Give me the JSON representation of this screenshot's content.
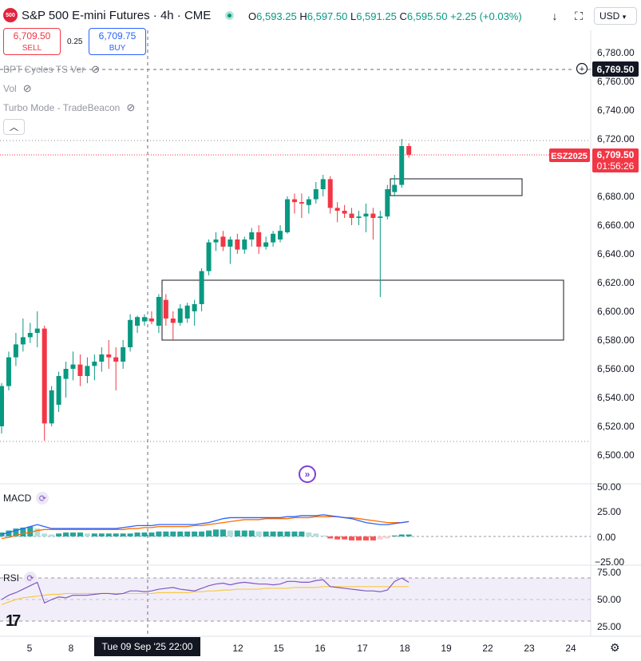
{
  "header": {
    "logo_text": "500",
    "title": "S&P 500 E-mini Futures · 4h · CME",
    "ohlc": {
      "open_label": "O",
      "open": "6,593.25",
      "high_label": "H",
      "high": "6,597.50",
      "low_label": "L",
      "low": "6,591.25",
      "close_label": "C",
      "close": "6,595.50",
      "change": "+2.25 (+0.03%)"
    },
    "currency": "USD"
  },
  "trade": {
    "sell_price": "6,709.50",
    "sell_label": "SELL",
    "spread": "0.25",
    "buy_price": "6,709.75",
    "buy_label": "BUY"
  },
  "indicators": [
    {
      "label": "BPT Cycles TS Ver"
    },
    {
      "label": "Vol"
    },
    {
      "label": "Turbo Mode - TradeBeacon"
    }
  ],
  "price_axis": {
    "ticks": [
      "6,780.00",
      "6,760.00",
      "6,740.00",
      "6,720.00",
      "6,680.00",
      "6,660.00",
      "6,640.00",
      "6,620.00",
      "6,600.00",
      "6,580.00",
      "6,560.00",
      "6,540.00",
      "6,520.00",
      "6,500.00"
    ],
    "crosshair_price": "6,769.50",
    "symbol_tag": "ESZ2025",
    "last_price": "6,709.50",
    "countdown": "01:56:26"
  },
  "macd": {
    "label": "MACD",
    "ticks": [
      "50.00",
      "25.00",
      "0.00",
      "−25.00"
    ]
  },
  "rsi": {
    "label": "RSI",
    "ticks": [
      "75.00",
      "50.00",
      "25.00"
    ]
  },
  "time_axis": {
    "ticks": [
      "5",
      "8",
      "12",
      "15",
      "16",
      "17",
      "18",
      "19",
      "22",
      "23",
      "24"
    ],
    "crosshair_time": "Tue 09 Sep '25   22:00"
  },
  "colors": {
    "up": "#089981",
    "down": "#f23645",
    "macd_line": "#2962ff",
    "signal_line": "#ff6d00",
    "rsi_line": "#7e57c2",
    "rsi_ma": "#f7c948"
  },
  "chart_data": {
    "type": "candlestick",
    "interval": "4h",
    "ylim": [
      6490,
      6790
    ],
    "candles": [
      {
        "o": 6520,
        "h": 6550,
        "l": 6515,
        "c": 6548
      },
      {
        "o": 6548,
        "h": 6572,
        "l": 6545,
        "c": 6568
      },
      {
        "o": 6568,
        "h": 6585,
        "l": 6562,
        "c": 6577
      },
      {
        "o": 6577,
        "h": 6595,
        "l": 6572,
        "c": 6582
      },
      {
        "o": 6582,
        "h": 6592,
        "l": 6578,
        "c": 6585
      },
      {
        "o": 6585,
        "h": 6600,
        "l": 6575,
        "c": 6588
      },
      {
        "o": 6588,
        "h": 6590,
        "l": 6510,
        "c": 6522
      },
      {
        "o": 6522,
        "h": 6548,
        "l": 6520,
        "c": 6545
      },
      {
        "o": 6535,
        "h": 6558,
        "l": 6530,
        "c": 6555
      },
      {
        "o": 6553,
        "h": 6565,
        "l": 6540,
        "c": 6560
      },
      {
        "o": 6560,
        "h": 6572,
        "l": 6552,
        "c": 6563
      },
      {
        "o": 6563,
        "h": 6570,
        "l": 6548,
        "c": 6555
      },
      {
        "o": 6555,
        "h": 6568,
        "l": 6550,
        "c": 6562
      },
      {
        "o": 6562,
        "h": 6570,
        "l": 6552,
        "c": 6565
      },
      {
        "o": 6565,
        "h": 6575,
        "l": 6558,
        "c": 6570
      },
      {
        "o": 6570,
        "h": 6580,
        "l": 6560,
        "c": 6568
      },
      {
        "o": 6568,
        "h": 6575,
        "l": 6545,
        "c": 6565
      },
      {
        "o": 6565,
        "h": 6580,
        "l": 6560,
        "c": 6575
      },
      {
        "o": 6575,
        "h": 6598,
        "l": 6572,
        "c": 6594
      },
      {
        "o": 6590,
        "h": 6597,
        "l": 6585,
        "c": 6596
      },
      {
        "o": 6593,
        "h": 6598,
        "l": 6590,
        "c": 6596
      },
      {
        "o": 6595,
        "h": 6600,
        "l": 6591,
        "c": 6593
      },
      {
        "o": 6590,
        "h": 6612,
        "l": 6585,
        "c": 6610
      },
      {
        "o": 6608,
        "h": 6612,
        "l": 6590,
        "c": 6595
      },
      {
        "o": 6595,
        "h": 6600,
        "l": 6580,
        "c": 6592
      },
      {
        "o": 6592,
        "h": 6605,
        "l": 6590,
        "c": 6602
      },
      {
        "o": 6595,
        "h": 6606,
        "l": 6592,
        "c": 6604
      },
      {
        "o": 6600,
        "h": 6608,
        "l": 6590,
        "c": 6605
      },
      {
        "o": 6605,
        "h": 6630,
        "l": 6600,
        "c": 6628
      },
      {
        "o": 6628,
        "h": 6650,
        "l": 6625,
        "c": 6648
      },
      {
        "o": 6648,
        "h": 6655,
        "l": 6642,
        "c": 6650
      },
      {
        "o": 6652,
        "h": 6656,
        "l": 6642,
        "c": 6645
      },
      {
        "o": 6645,
        "h": 6652,
        "l": 6633,
        "c": 6650
      },
      {
        "o": 6650,
        "h": 6654,
        "l": 6640,
        "c": 6643
      },
      {
        "o": 6643,
        "h": 6652,
        "l": 6640,
        "c": 6650
      },
      {
        "o": 6650,
        "h": 6658,
        "l": 6645,
        "c": 6655
      },
      {
        "o": 6655,
        "h": 6660,
        "l": 6640,
        "c": 6645
      },
      {
        "o": 6645,
        "h": 6652,
        "l": 6643,
        "c": 6648
      },
      {
        "o": 6648,
        "h": 6656,
        "l": 6645,
        "c": 6654
      },
      {
        "o": 6650,
        "h": 6660,
        "l": 6648,
        "c": 6656
      },
      {
        "o": 6655,
        "h": 6680,
        "l": 6654,
        "c": 6678
      },
      {
        "o": 6678,
        "h": 6682,
        "l": 6668,
        "c": 6676
      },
      {
        "o": 6676,
        "h": 6682,
        "l": 6665,
        "c": 6675
      },
      {
        "o": 6674,
        "h": 6680,
        "l": 6668,
        "c": 6678
      },
      {
        "o": 6678,
        "h": 6690,
        "l": 6675,
        "c": 6685
      },
      {
        "o": 6685,
        "h": 6695,
        "l": 6680,
        "c": 6692
      },
      {
        "o": 6692,
        "h": 6694,
        "l": 6668,
        "c": 6672
      },
      {
        "o": 6672,
        "h": 6676,
        "l": 6662,
        "c": 6670
      },
      {
        "o": 6670,
        "h": 6674,
        "l": 6665,
        "c": 6668
      },
      {
        "o": 6668,
        "h": 6672,
        "l": 6660,
        "c": 6665
      },
      {
        "o": 6665,
        "h": 6670,
        "l": 6660,
        "c": 6666
      },
      {
        "o": 6666,
        "h": 6675,
        "l": 6655,
        "c": 6668
      },
      {
        "o": 6668,
        "h": 6672,
        "l": 6650,
        "c": 6665
      },
      {
        "o": 6665,
        "h": 6670,
        "l": 6610,
        "c": 6666
      },
      {
        "o": 6666,
        "h": 6688,
        "l": 6664,
        "c": 6685
      },
      {
        "o": 6683,
        "h": 6695,
        "l": 6680,
        "c": 6688
      },
      {
        "o": 6688,
        "h": 6720,
        "l": 6686,
        "c": 6715
      },
      {
        "o": 6715,
        "h": 6717,
        "l": 6707,
        "c": 6709
      }
    ],
    "zones": [
      {
        "x0": 6580,
        "top": 6622,
        "bottom": 6580,
        "from": 20,
        "to": 53
      },
      {
        "top": 6692,
        "bottom": 6680,
        "from": 54,
        "to": 65
      }
    ],
    "macd": {
      "hist": [
        4,
        6,
        8,
        9,
        10,
        8,
        3,
        2,
        3,
        4,
        4,
        4,
        3,
        3,
        3,
        3,
        3,
        3,
        3,
        4,
        4,
        4,
        5,
        5,
        5,
        5,
        5,
        5,
        5,
        6,
        7,
        7,
        6,
        6,
        6,
        6,
        5,
        5,
        5,
        5,
        5,
        5,
        5,
        4,
        3,
        1,
        -2,
        -3,
        -3,
        -4,
        -4,
        -4,
        -4,
        -3,
        -2,
        1,
        2,
        2
      ],
      "macd": [
        2,
        4,
        6,
        8,
        10,
        12,
        10,
        8,
        8,
        8,
        8,
        8,
        8,
        8,
        8,
        8,
        8,
        9,
        10,
        11,
        11,
        11,
        12,
        12,
        12,
        12,
        12,
        12,
        13,
        14,
        16,
        18,
        19,
        19,
        19,
        19,
        19,
        19,
        19,
        19,
        20,
        20,
        21,
        21,
        21,
        22,
        21,
        20,
        19,
        18,
        16,
        14,
        13,
        12,
        12,
        13,
        14,
        15
      ],
      "signal": [
        -2,
        -1,
        1,
        3,
        4,
        6,
        7,
        7,
        7,
        7,
        7,
        7,
        7,
        7,
        7,
        7,
        7,
        7,
        8,
        8,
        9,
        9,
        10,
        10,
        10,
        10,
        10,
        11,
        11,
        12,
        13,
        14,
        15,
        16,
        17,
        17,
        17,
        18,
        18,
        18,
        18,
        19,
        19,
        19,
        20,
        20,
        20,
        20,
        19,
        19,
        18,
        17,
        16,
        15,
        14,
        14,
        14,
        15
      ],
      "ylim": [
        -30,
        55
      ]
    },
    "rsi": {
      "values": [
        50,
        55,
        58,
        62,
        66,
        70,
        46,
        50,
        53,
        52,
        55,
        55,
        55,
        56,
        57,
        57,
        56,
        57,
        60,
        60,
        59,
        60,
        62,
        63,
        64,
        62,
        61,
        60,
        63,
        66,
        68,
        69,
        67,
        69,
        70,
        69,
        68,
        68,
        67,
        68,
        71,
        71,
        70,
        70,
        72,
        73,
        65,
        64,
        63,
        62,
        61,
        60,
        60,
        59,
        61,
        71,
        75,
        70
      ],
      "ma": [
        44,
        47,
        50,
        52,
        53,
        54,
        55,
        56,
        56,
        57,
        57,
        57,
        57,
        57,
        57,
        57,
        57,
        57,
        57,
        57,
        57,
        57,
        58,
        58,
        58,
        58,
        58,
        59,
        59,
        60,
        60,
        61,
        61,
        62,
        62,
        62,
        62,
        63,
        63,
        63,
        63,
        64,
        64,
        64,
        64,
        65,
        65,
        65,
        65,
        65,
        65,
        65,
        65,
        65,
        65,
        65,
        65,
        65
      ],
      "ylim": [
        15,
        85
      ]
    }
  }
}
